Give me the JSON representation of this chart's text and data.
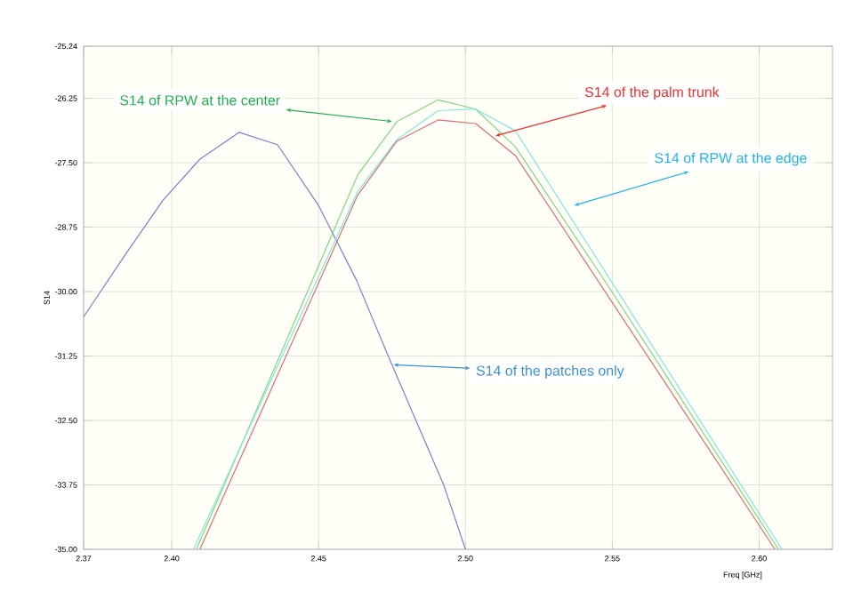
{
  "chart_data": {
    "type": "line",
    "xlabel": "Freq [GHz]",
    "ylabel": "S14",
    "xlim": [
      2.37,
      2.625
    ],
    "ylim": [
      -35,
      -25.24
    ],
    "xticks": [
      2.37,
      {
        "value": 2.4,
        "label": "2.40"
      },
      2.45,
      {
        "value": 2.5,
        "label": "2.50"
      },
      2.55,
      {
        "value": 2.6,
        "label": "2.60"
      }
    ],
    "yticks": [
      {
        "value": -35,
        "label": "-35.00"
      },
      -33.75,
      {
        "value": -32.5,
        "label": "-32.50"
      },
      -31.25,
      {
        "value": -30,
        "label": "-30.00"
      },
      -28.75,
      {
        "value": -27.5,
        "label": "-27.50"
      },
      -26.25,
      -25.24
    ],
    "grid": true,
    "marker": "none",
    "line_style": "solid",
    "series": [
      {
        "color": "#7b7fd0",
        "x": [
          2.37,
          2.384,
          2.397,
          2.4096,
          2.423,
          2.436,
          2.45,
          2.463,
          2.4737,
          2.4926,
          2.5
        ],
        "values": [
          -30.49,
          -29.3,
          -28.23,
          -27.43,
          -26.91,
          -27.15,
          -28.33,
          -29.79,
          -31.25,
          -33.75,
          -35.0
        ]
      },
      {
        "color": "#7fd87f",
        "x": [
          2.4084,
          2.4633,
          2.4767,
          2.4907,
          2.5035,
          2.517,
          2.5487,
          2.6066
        ],
        "values": [
          -35.0,
          -27.74,
          -26.7,
          -26.28,
          -26.46,
          -27.19,
          -29.9,
          -35.0
        ]
      },
      {
        "color": "#80e8e0",
        "x": [
          2.4074,
          2.4633,
          2.4767,
          2.4907,
          2.5035,
          2.517,
          2.6078
        ],
        "values": [
          -35.0,
          -28.06,
          -27.05,
          -26.49,
          -26.46,
          -26.88,
          -35.0
        ]
      },
      {
        "color": "#d87070",
        "x": [
          2.4096,
          2.4633,
          2.4767,
          2.4907,
          2.5035,
          2.517,
          2.6054
        ],
        "values": [
          -35.0,
          -28.13,
          -27.08,
          -26.67,
          -26.74,
          -27.36,
          -35.0
        ]
      }
    ],
    "annotations": [
      {
        "text": "S14 of the patches only",
        "x": 2.4755,
        "y": -31.42
      },
      {
        "text": "S14 of RPW at the center",
        "x": 2.475,
        "y": -26.7
      },
      {
        "text": "S14 of RPW at the edge",
        "x": 2.537,
        "y": -28.33
      },
      {
        "text": "S14 of the palm trunk",
        "x": 2.5102,
        "y": -26.98
      }
    ]
  }
}
